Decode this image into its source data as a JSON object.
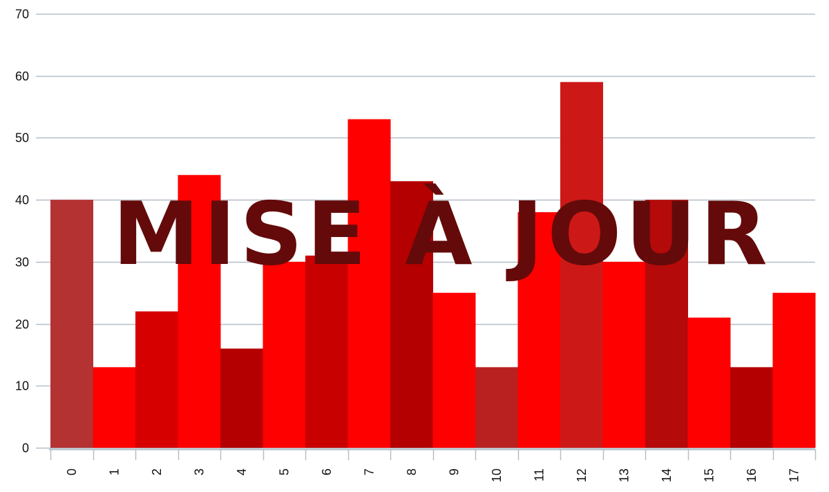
{
  "chart_data": {
    "type": "bar",
    "title": "",
    "xlabel": "",
    "ylabel": "",
    "categories": [
      "0",
      "1",
      "2",
      "3",
      "4",
      "5",
      "6",
      "7",
      "8",
      "9",
      "10",
      "11",
      "12",
      "13",
      "14",
      "15",
      "16",
      "17"
    ],
    "values": [
      40,
      13,
      22,
      44,
      16,
      30,
      31,
      53,
      43,
      25,
      13,
      38,
      59,
      30,
      40,
      21,
      13,
      25
    ],
    "bar_colors": [
      "#b43232",
      "#ff0000",
      "#d70000",
      "#ff0000",
      "#b40000",
      "#ff0000",
      "#c80000",
      "#ff0000",
      "#b40000",
      "#ff0000",
      "#b92020",
      "#ff0000",
      "#cd1818",
      "#ff0000",
      "#b40a0a",
      "#ff0000",
      "#b40000",
      "#ff0000"
    ],
    "ylim": [
      0,
      70
    ],
    "yticks": [
      0,
      10,
      20,
      30,
      40,
      50,
      60,
      70
    ],
    "grid": true,
    "grid_color": "#b4bec8",
    "overlay_text": "MISE À JOUR",
    "overlay_color": "#640a0a"
  }
}
